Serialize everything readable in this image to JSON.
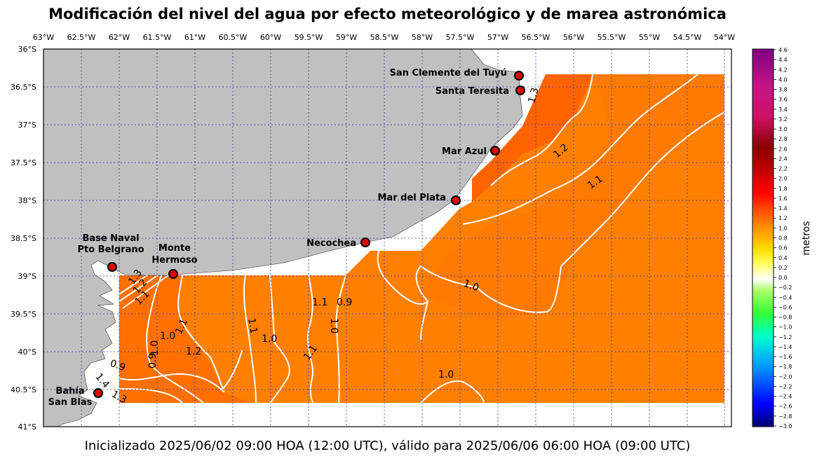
{
  "title": "Modificación del nivel del agua por efecto meteorológico y de marea astronómica",
  "subtitle": "Inicializado 2025/06/02 09:00 HOA (12:00 UTC), válido para 2025/06/06 06:00 HOA (09:00 UTC)",
  "map": {
    "lon_labels": [
      "63°W",
      "62.5°W",
      "62°W",
      "61.5°W",
      "61°W",
      "60.5°W",
      "60°W",
      "59.5°W",
      "59°W",
      "58.5°W",
      "58°W",
      "57.5°W",
      "57°W",
      "56.5°W",
      "56°W",
      "55.5°W",
      "55°W",
      "54.5°W",
      "54°W"
    ],
    "lat_labels": [
      "36°S",
      "36.5°S",
      "37°S",
      "37.5°S",
      "38°S",
      "38.5°S",
      "39°S",
      "39.5°S",
      "40°S",
      "40.5°S",
      "41°S"
    ],
    "land_color": "#c0c0c0",
    "grid_color": "#3333aa"
  },
  "stations": [
    {
      "name": "San Clemente del Tuyú"
    },
    {
      "name": "Santa Teresita"
    },
    {
      "name": "Mar Azul"
    },
    {
      "name": "Mar del Plata"
    },
    {
      "name": "Necochea"
    },
    {
      "name": "Base Naval",
      "name2": "Pto Belgrano"
    },
    {
      "name": "Monte",
      "name2": "Hermoso"
    },
    {
      "name": "Bahía",
      "name2": "San Blas"
    }
  ],
  "contour_labels": [
    "1.3",
    "1.2",
    "1.1",
    "1.0",
    "0.9",
    "1.3",
    "1.2",
    "1.1",
    "1.1",
    "1.0",
    "0.9",
    "1.0",
    "1.1",
    "1.2",
    "1.1",
    "1.0",
    "1.0",
    "1.1",
    "1.0",
    "0.9",
    "1.4",
    "1.3"
  ],
  "colorbar": {
    "label": "metros",
    "ticks": [
      "4.6",
      "4.4",
      "4.2",
      "4.0",
      "3.8",
      "3.6",
      "3.4",
      "3.2",
      "3.0",
      "2.8",
      "2.6",
      "2.4",
      "2.2",
      "2.0",
      "1.8",
      "1.6",
      "1.4",
      "1.2",
      "1.0",
      "0.8",
      "0.6",
      "0.4",
      "0.2",
      "0.0",
      "−0.2",
      "−0.4",
      "−0.6",
      "−0.8",
      "−1.0",
      "−1.2",
      "−1.4",
      "−1.6",
      "−1.8",
      "−2.0",
      "−2.2",
      "−2.4",
      "−2.6",
      "−2.8",
      "−3.0"
    ],
    "colors": [
      "#000080",
      "#0000ff",
      "#00bfff",
      "#00ff99",
      "#66ff33",
      "#ffffff",
      "#ffff00",
      "#ffaa00",
      "#ff5500",
      "#ff0000",
      "#8b0000",
      "#c71585",
      "#800080"
    ]
  }
}
